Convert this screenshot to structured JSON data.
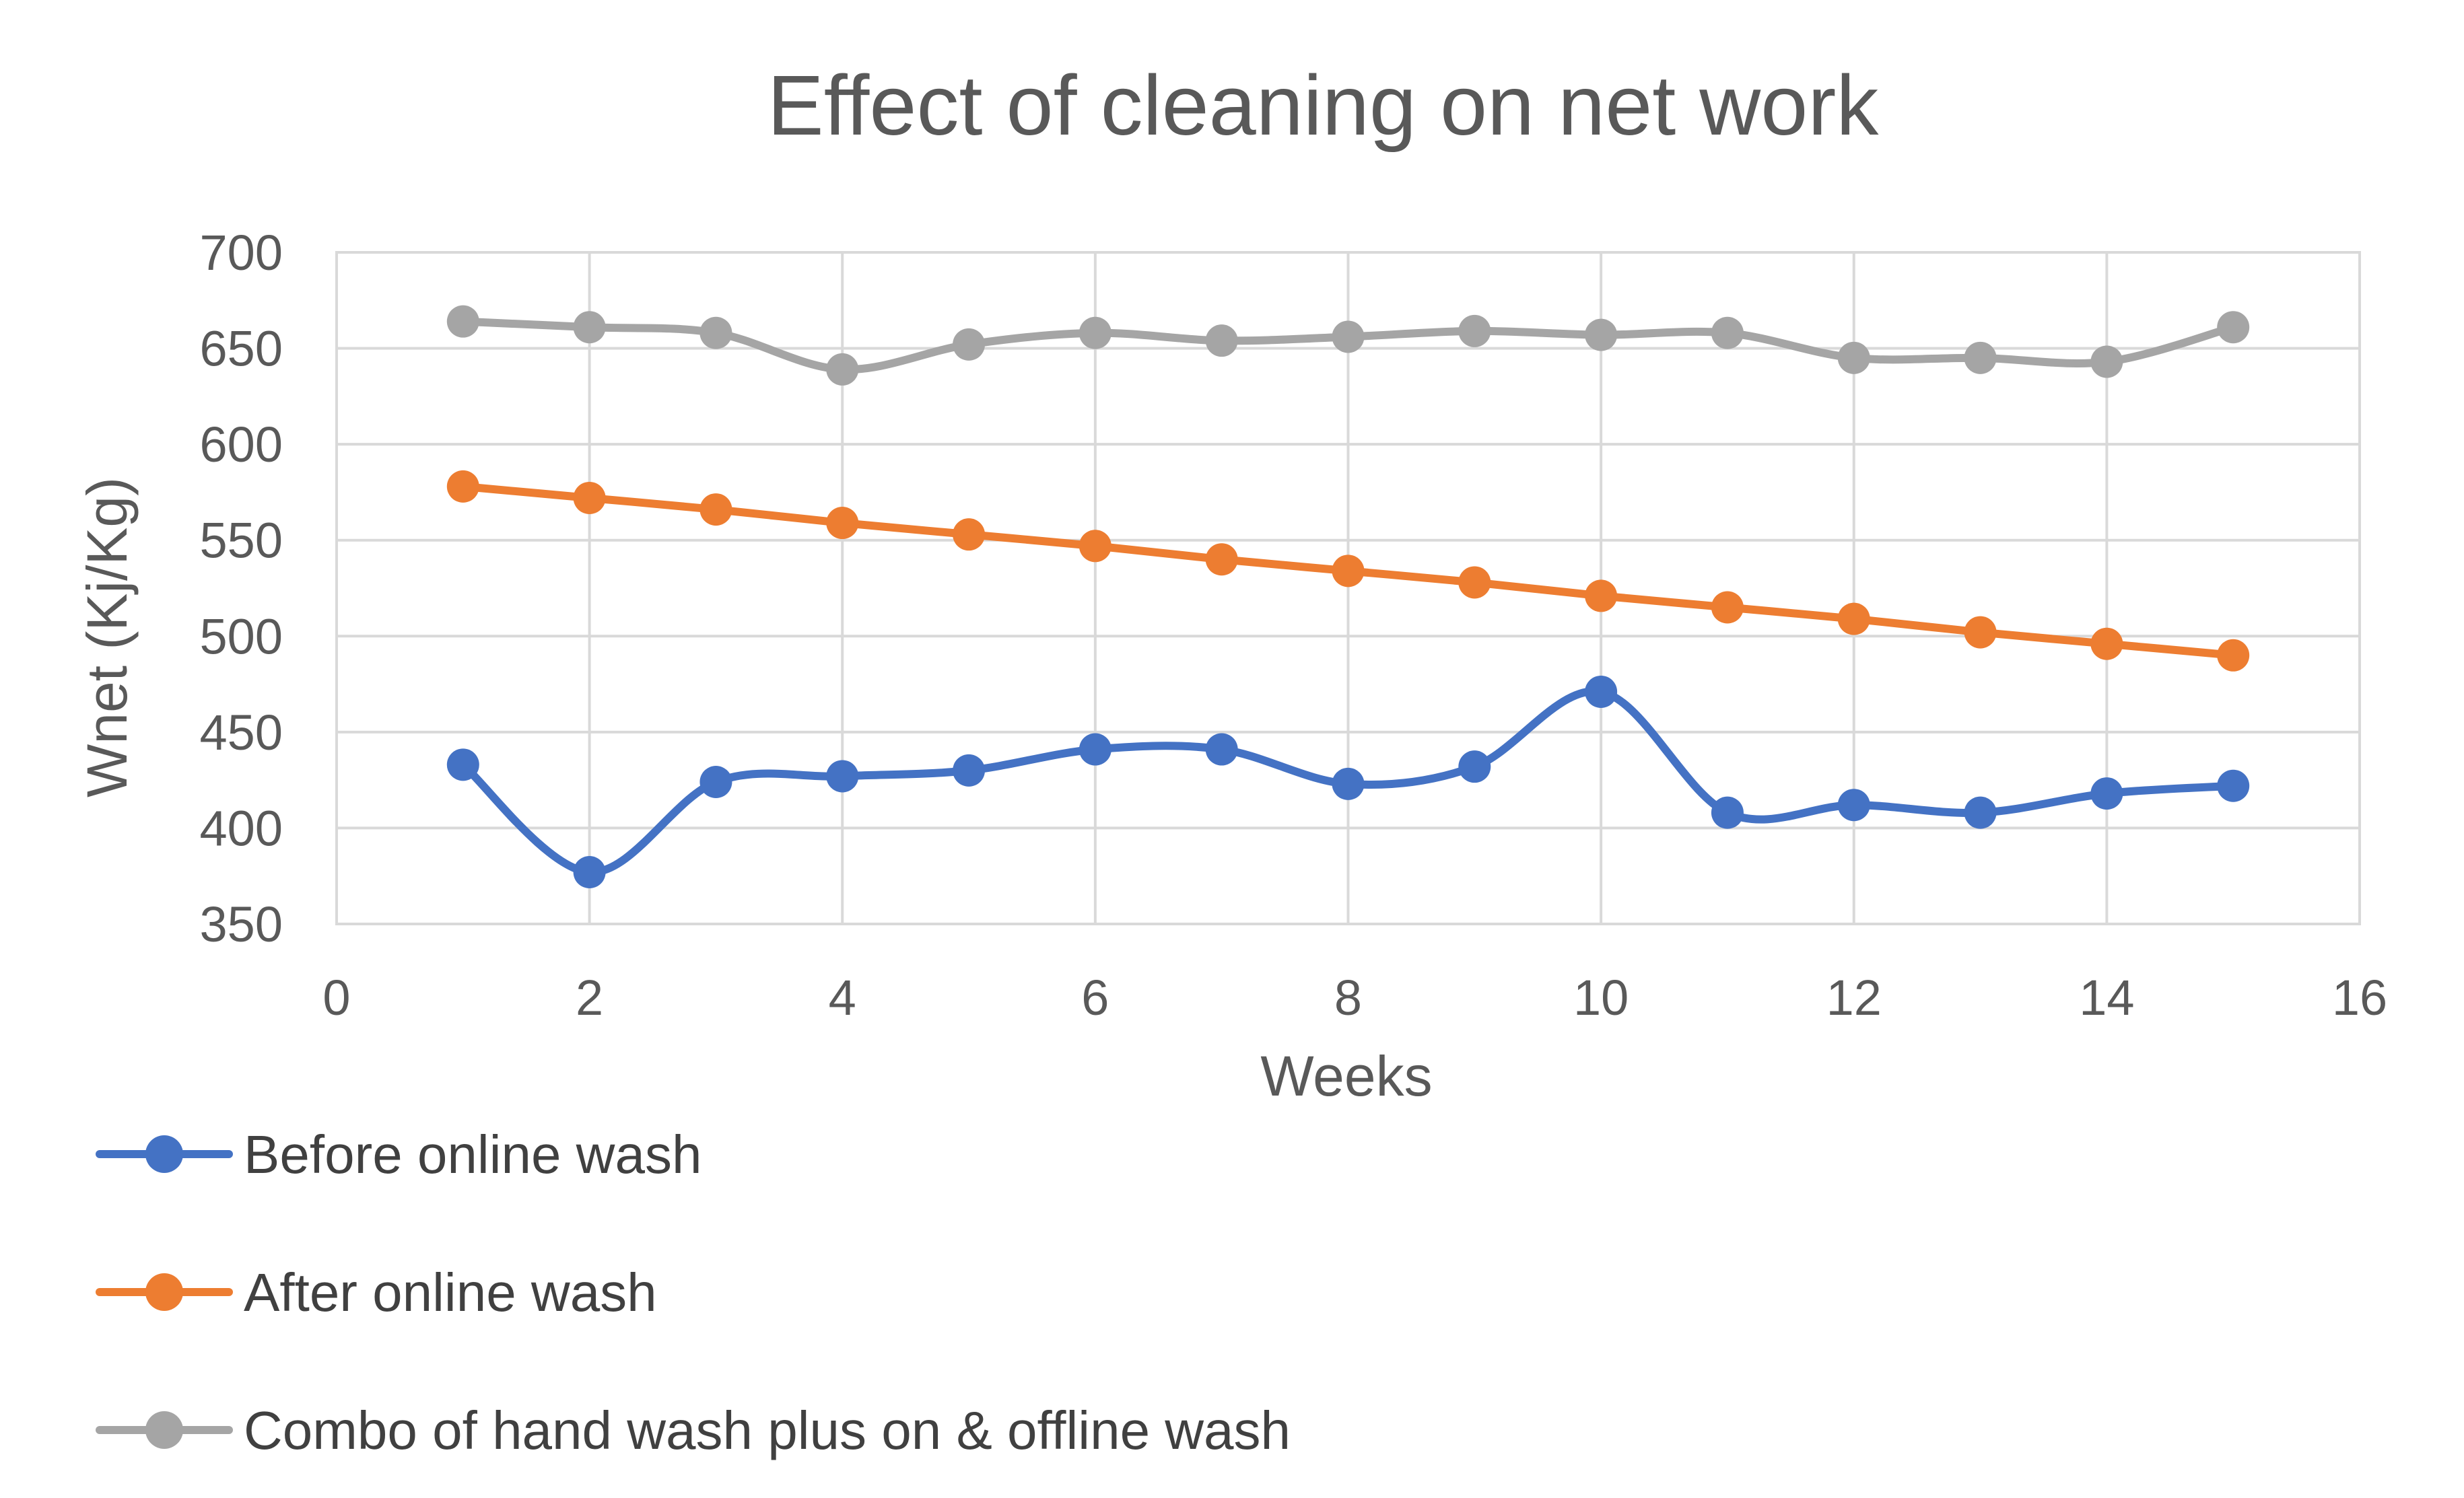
{
  "chart_data": {
    "type": "line",
    "title": "Effect of cleaning on net work",
    "xlabel": "Weeks",
    "ylabel": "Wnet (Kj/Kg)",
    "xlim": [
      0,
      16
    ],
    "ylim": [
      350,
      700
    ],
    "xticks": [
      0,
      2,
      4,
      6,
      8,
      10,
      12,
      14,
      16
    ],
    "yticks": [
      350,
      400,
      450,
      500,
      550,
      600,
      650,
      700
    ],
    "grid": true,
    "smooth": true,
    "legend_position": "bottom",
    "x": [
      1,
      2,
      3,
      4,
      5,
      6,
      7,
      8,
      9,
      10,
      11,
      12,
      13,
      14,
      15
    ],
    "series": [
      {
        "name": "Before online wash",
        "color": "#4472c4",
        "values": [
          433,
          377,
          424,
          427,
          430,
          441,
          441,
          423,
          432,
          471,
          408,
          412,
          408,
          418,
          422
        ]
      },
      {
        "name": "After online wash",
        "color": "#ed7d31",
        "values": [
          578,
          572,
          566,
          559,
          553,
          547,
          540,
          534,
          528,
          521,
          515,
          509,
          502,
          496,
          490
        ]
      },
      {
        "name": "Combo of hand wash plus on & offline wash",
        "color": "#a5a5a5",
        "values": [
          664,
          661,
          658,
          639,
          652,
          658,
          654,
          656,
          659,
          657,
          658,
          645,
          645,
          643,
          661
        ]
      }
    ]
  }
}
